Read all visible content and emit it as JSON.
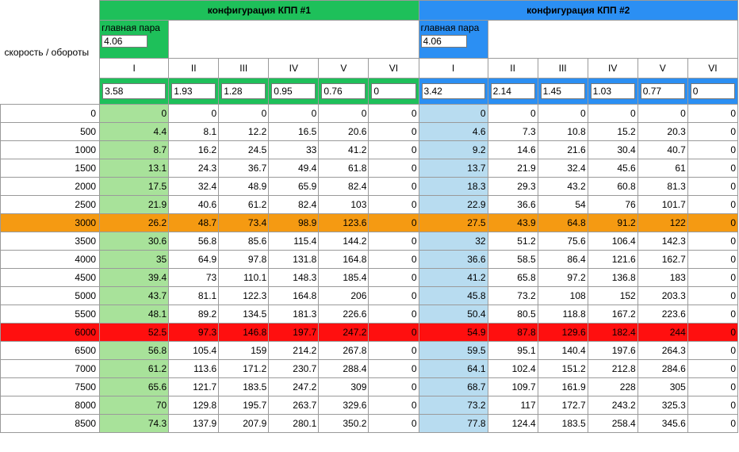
{
  "header": {
    "config1_title": "конфигурация КПП #1",
    "config2_title": "конфигурация КПП #2",
    "corner_label": "скорость / обороты"
  },
  "config1": {
    "main_pair_label": "главная пара",
    "main_pair_value": "4.06",
    "ratios": [
      "3.58",
      "1.93",
      "1.28",
      "0.95",
      "0.76",
      "0"
    ]
  },
  "config2": {
    "main_pair_label": "главная пара",
    "main_pair_value": "4.06",
    "ratios": [
      "3.42",
      "2.14",
      "1.45",
      "1.03",
      "0.77",
      "0"
    ]
  },
  "gears": [
    "I",
    "II",
    "III",
    "IV",
    "V",
    "VI"
  ],
  "colors": {
    "config1_header": "#1ec05a",
    "config2_header": "#2b8ff3",
    "gear1_col_cfg1": "#a8e29a",
    "gear1_col_cfg2": "#b8dcf0",
    "highlight_3000": "#f59a12",
    "highlight_6000": "#ff0f0f"
  },
  "rows": [
    {
      "rpm": "0",
      "c1": [
        "0",
        "0",
        "0",
        "0",
        "0",
        "0"
      ],
      "c2": [
        "0",
        "0",
        "0",
        "0",
        "0",
        "0"
      ]
    },
    {
      "rpm": "500",
      "c1": [
        "4.4",
        "8.1",
        "12.2",
        "16.5",
        "20.6",
        "0"
      ],
      "c2": [
        "4.6",
        "7.3",
        "10.8",
        "15.2",
        "20.3",
        "0"
      ]
    },
    {
      "rpm": "1000",
      "c1": [
        "8.7",
        "16.2",
        "24.5",
        "33",
        "41.2",
        "0"
      ],
      "c2": [
        "9.2",
        "14.6",
        "21.6",
        "30.4",
        "40.7",
        "0"
      ]
    },
    {
      "rpm": "1500",
      "c1": [
        "13.1",
        "24.3",
        "36.7",
        "49.4",
        "61.8",
        "0"
      ],
      "c2": [
        "13.7",
        "21.9",
        "32.4",
        "45.6",
        "61",
        "0"
      ]
    },
    {
      "rpm": "2000",
      "c1": [
        "17.5",
        "32.4",
        "48.9",
        "65.9",
        "82.4",
        "0"
      ],
      "c2": [
        "18.3",
        "29.3",
        "43.2",
        "60.8",
        "81.3",
        "0"
      ]
    },
    {
      "rpm": "2500",
      "c1": [
        "21.9",
        "40.6",
        "61.2",
        "82.4",
        "103",
        "0"
      ],
      "c2": [
        "22.9",
        "36.6",
        "54",
        "76",
        "101.7",
        "0"
      ]
    },
    {
      "rpm": "3000",
      "c1": [
        "26.2",
        "48.7",
        "73.4",
        "98.9",
        "123.6",
        "0"
      ],
      "c2": [
        "27.5",
        "43.9",
        "64.8",
        "91.2",
        "122",
        "0"
      ],
      "hl": "hl3000"
    },
    {
      "rpm": "3500",
      "c1": [
        "30.6",
        "56.8",
        "85.6",
        "115.4",
        "144.2",
        "0"
      ],
      "c2": [
        "32",
        "51.2",
        "75.6",
        "106.4",
        "142.3",
        "0"
      ]
    },
    {
      "rpm": "4000",
      "c1": [
        "35",
        "64.9",
        "97.8",
        "131.8",
        "164.8",
        "0"
      ],
      "c2": [
        "36.6",
        "58.5",
        "86.4",
        "121.6",
        "162.7",
        "0"
      ]
    },
    {
      "rpm": "4500",
      "c1": [
        "39.4",
        "73",
        "110.1",
        "148.3",
        "185.4",
        "0"
      ],
      "c2": [
        "41.2",
        "65.8",
        "97.2",
        "136.8",
        "183",
        "0"
      ]
    },
    {
      "rpm": "5000",
      "c1": [
        "43.7",
        "81.1",
        "122.3",
        "164.8",
        "206",
        "0"
      ],
      "c2": [
        "45.8",
        "73.2",
        "108",
        "152",
        "203.3",
        "0"
      ]
    },
    {
      "rpm": "5500",
      "c1": [
        "48.1",
        "89.2",
        "134.5",
        "181.3",
        "226.6",
        "0"
      ],
      "c2": [
        "50.4",
        "80.5",
        "118.8",
        "167.2",
        "223.6",
        "0"
      ]
    },
    {
      "rpm": "6000",
      "c1": [
        "52.5",
        "97.3",
        "146.8",
        "197.7",
        "247.2",
        "0"
      ],
      "c2": [
        "54.9",
        "87.8",
        "129.6",
        "182.4",
        "244",
        "0"
      ],
      "hl": "hl6000"
    },
    {
      "rpm": "6500",
      "c1": [
        "56.8",
        "105.4",
        "159",
        "214.2",
        "267.8",
        "0"
      ],
      "c2": [
        "59.5",
        "95.1",
        "140.4",
        "197.6",
        "264.3",
        "0"
      ]
    },
    {
      "rpm": "7000",
      "c1": [
        "61.2",
        "113.6",
        "171.2",
        "230.7",
        "288.4",
        "0"
      ],
      "c2": [
        "64.1",
        "102.4",
        "151.2",
        "212.8",
        "284.6",
        "0"
      ]
    },
    {
      "rpm": "7500",
      "c1": [
        "65.6",
        "121.7",
        "183.5",
        "247.2",
        "309",
        "0"
      ],
      "c2": [
        "68.7",
        "109.7",
        "161.9",
        "228",
        "305",
        "0"
      ]
    },
    {
      "rpm": "8000",
      "c1": [
        "70",
        "129.8",
        "195.7",
        "263.7",
        "329.6",
        "0"
      ],
      "c2": [
        "73.2",
        "117",
        "172.7",
        "243.2",
        "325.3",
        "0"
      ]
    },
    {
      "rpm": "8500",
      "c1": [
        "74.3",
        "137.9",
        "207.9",
        "280.1",
        "350.2",
        "0"
      ],
      "c2": [
        "77.8",
        "124.4",
        "183.5",
        "258.4",
        "345.6",
        "0"
      ]
    }
  ]
}
